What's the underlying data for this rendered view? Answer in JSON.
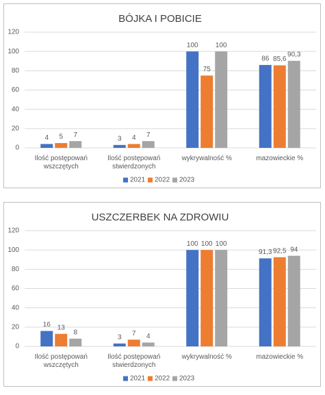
{
  "chart_data": [
    {
      "type": "bar",
      "title": "BÓJKA I POBICIE",
      "categories": [
        "Ilość postępowań wszczętych",
        "Ilość postępowań stwierdzonych",
        "wykrywalność %",
        "mazowieckie %"
      ],
      "series": [
        {
          "name": "2021",
          "color": "#4472c4",
          "values": [
            4,
            3,
            100,
            86
          ]
        },
        {
          "name": "2022",
          "color": "#ed7d31",
          "values": [
            5,
            4,
            75,
            85.6
          ],
          "value_labels": [
            "5",
            "4",
            "75",
            "85,6"
          ]
        },
        {
          "name": "2023",
          "color": "#a5a5a5",
          "values": [
            7,
            7,
            100,
            90.3
          ],
          "value_labels": [
            "7",
            "7",
            "100",
            "90,3"
          ]
        }
      ],
      "ylim": [
        0,
        120
      ],
      "yticks": [
        0,
        20,
        40,
        60,
        80,
        100,
        120
      ],
      "grid": true,
      "legend": "bottom"
    },
    {
      "type": "bar",
      "title": "USZCZERBEK NA ZDROWIU",
      "categories": [
        "Ilość postępowań wszczętych",
        "Ilość postępowań stwierdzonych",
        "wykrywalność %",
        "mazowieckie %"
      ],
      "series": [
        {
          "name": "2021",
          "color": "#4472c4",
          "values": [
            16,
            3,
            100,
            91.3
          ],
          "value_labels": [
            "16",
            "3",
            "100",
            "91,3"
          ]
        },
        {
          "name": "2022",
          "color": "#ed7d31",
          "values": [
            13,
            7,
            100,
            92.5
          ],
          "value_labels": [
            "13",
            "7",
            "100",
            "92,5"
          ]
        },
        {
          "name": "2023",
          "color": "#a5a5a5",
          "values": [
            8,
            4,
            100,
            94
          ]
        }
      ],
      "ylim": [
        0,
        120
      ],
      "yticks": [
        0,
        20,
        40,
        60,
        80,
        100,
        120
      ],
      "grid": true,
      "legend": "bottom"
    }
  ]
}
